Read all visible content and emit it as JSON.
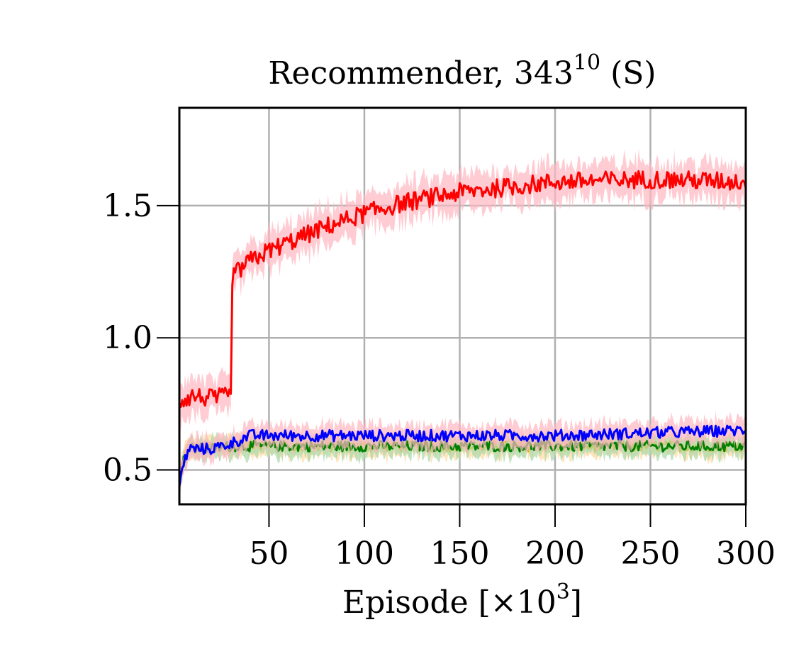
{
  "chart_data": {
    "type": "line",
    "title": "Recommender, 343",
    "title_superscript": "10",
    "title_suffix": " (S)",
    "xlabel": "Episode [×10",
    "xlabel_superscript": "3",
    "xlabel_suffix": "]",
    "ylabel": "",
    "xlim": [
      3,
      300
    ],
    "ylim": [
      0.37,
      1.87
    ],
    "xticks": [
      50,
      100,
      150,
      200,
      250,
      300
    ],
    "xtick_labels": [
      "50",
      "100",
      "150",
      "200",
      "250",
      "300"
    ],
    "yticks": [
      0.5,
      1.0,
      1.5
    ],
    "ytick_labels": [
      "0.5",
      "1.0",
      "1.5"
    ],
    "grid": true,
    "legend": "none",
    "series": [
      {
        "color": "#ffa500",
        "band_color": "#ffd9a0",
        "x": [
          3,
          5,
          8,
          12,
          20,
          30,
          40,
          60,
          100,
          150,
          200,
          250,
          300
        ],
        "values": [
          0.46,
          0.54,
          0.59,
          0.58,
          0.59,
          0.59,
          0.6,
          0.59,
          0.59,
          0.59,
          0.59,
          0.59,
          0.59
        ],
        "noise": 0.02
      },
      {
        "color": "#008000",
        "band_color": "#a8d8a8",
        "x": [
          3,
          5,
          8,
          12,
          20,
          30,
          40,
          60,
          100,
          150,
          200,
          250,
          300
        ],
        "values": [
          0.46,
          0.53,
          0.58,
          0.58,
          0.58,
          0.59,
          0.59,
          0.59,
          0.59,
          0.59,
          0.59,
          0.59,
          0.59
        ],
        "noise": 0.02
      },
      {
        "color": "#0000ff",
        "band_color": "#ffb6c1",
        "x": [
          3,
          5,
          8,
          12,
          20,
          30,
          40,
          60,
          100,
          150,
          200,
          250,
          300
        ],
        "values": [
          0.44,
          0.52,
          0.58,
          0.58,
          0.58,
          0.6,
          0.63,
          0.63,
          0.63,
          0.63,
          0.63,
          0.64,
          0.65
        ],
        "noise": 0.022
      },
      {
        "color": "#ff0000",
        "band_color": "#ffb6c1",
        "x": [
          3,
          10,
          20,
          30,
          30.5,
          40,
          50,
          60,
          80,
          100,
          120,
          150,
          200,
          250,
          300
        ],
        "values": [
          0.76,
          0.78,
          0.77,
          0.78,
          1.23,
          1.29,
          1.33,
          1.36,
          1.42,
          1.47,
          1.51,
          1.55,
          1.59,
          1.6,
          1.59
        ],
        "noise": 0.035
      }
    ]
  }
}
